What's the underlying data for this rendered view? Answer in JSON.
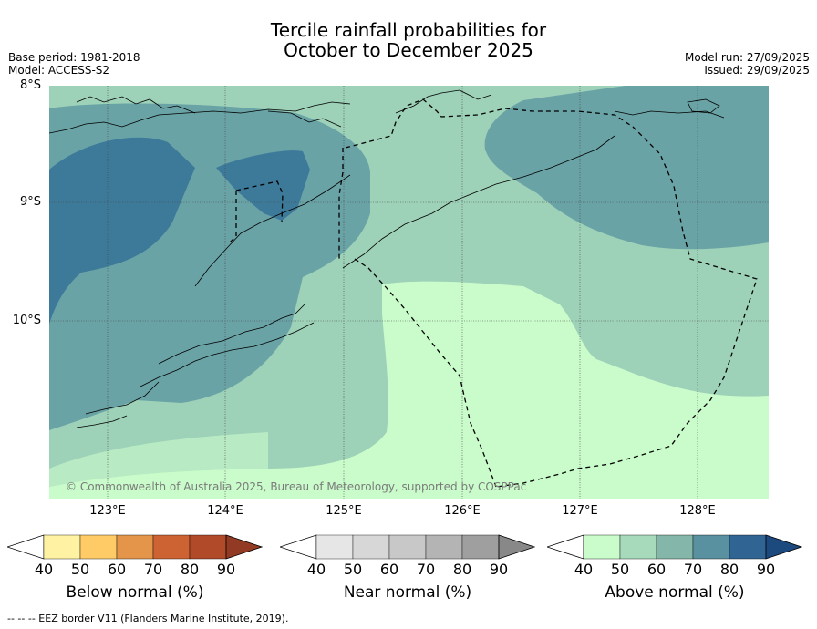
{
  "title": {
    "line1": "Tercile rainfall probabilities for",
    "line2": "October to December 2025"
  },
  "meta": {
    "base_period": "Base period: 1981-2018",
    "model": "Model: ACCESS-S2",
    "model_run": "Model run: 27/09/2025",
    "issued": "Issued: 29/09/2025"
  },
  "map": {
    "lat_labels": [
      "8°S",
      "9°S",
      "10°S"
    ],
    "lon_labels": [
      "123°E",
      "124°E",
      "125°E",
      "126°E",
      "127°E",
      "128°E"
    ],
    "credit": "© Commonwealth of Australia 2025, Bureau of Meteorology, supported by COSPPac",
    "colors": {
      "near_normal_50": "#9dd1b8",
      "above_40": "#c9fcca",
      "above_60": "#6aa3a6",
      "above_70": "#3d7a99"
    }
  },
  "colorbars": [
    {
      "title": "Below normal (%)",
      "ticks": [
        "40",
        "50",
        "60",
        "70",
        "80",
        "90"
      ],
      "colors": [
        "#fff3a3",
        "#fecb66",
        "#e4954a",
        "#cd6232",
        "#b04a28",
        "#933a24"
      ]
    },
    {
      "title": "Near normal (%)",
      "ticks": [
        "40",
        "50",
        "60",
        "70",
        "80",
        "90"
      ],
      "colors": [
        "#e6e6e6",
        "#d7d7d7",
        "#c8c8c8",
        "#b4b4b4",
        "#9f9f9f",
        "#888888"
      ]
    },
    {
      "title": "Above normal (%)",
      "ticks": [
        "40",
        "50",
        "60",
        "70",
        "80",
        "90"
      ],
      "colors": [
        "#c9fcca",
        "#a7d9bb",
        "#84b6a9",
        "#5a91a0",
        "#306493",
        "#1c4a7e"
      ]
    }
  ],
  "footer": "--  --  -- EEZ border V11 (Flanders Marine Institute, 2019)."
}
